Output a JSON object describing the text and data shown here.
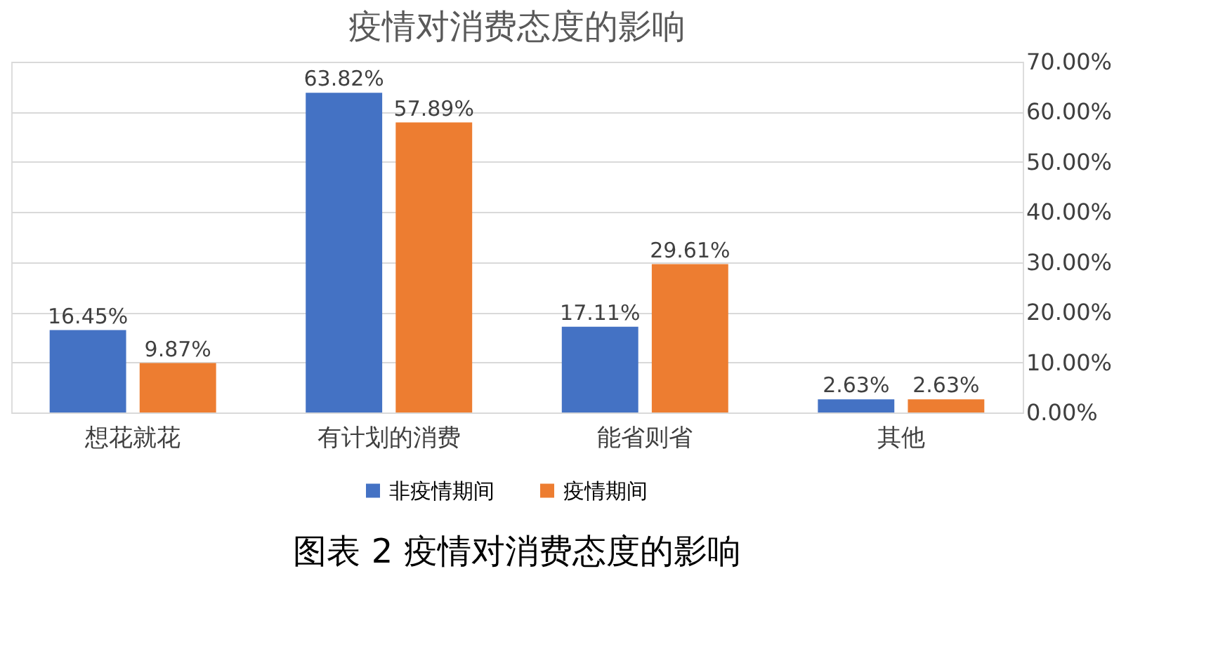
{
  "chart_data": {
    "type": "bar",
    "title": "疫情对消费态度的影响",
    "categories": [
      "想花就花",
      "有计划的消费",
      "能省则省",
      "其他"
    ],
    "series": [
      {
        "name": "非疫情期间",
        "color": "#4472c4",
        "values": [
          16.45,
          63.82,
          17.11,
          2.63
        ],
        "value_labels": [
          "16.45%",
          "63.82%",
          "17.11%",
          "2.63%"
        ]
      },
      {
        "name": "疫情期间",
        "color": "#ed7d31",
        "values": [
          9.87,
          57.89,
          29.61,
          2.63
        ],
        "value_labels": [
          "9.87%",
          "57.89%",
          "29.61%",
          "2.63%"
        ]
      }
    ],
    "ylim": [
      0,
      70
    ],
    "yticks": [
      {
        "value": 0,
        "label": "0.00%"
      },
      {
        "value": 10,
        "label": "10.00%"
      },
      {
        "value": 20,
        "label": "20.00%"
      },
      {
        "value": 30,
        "label": "30.00%"
      },
      {
        "value": 40,
        "label": "40.00%"
      },
      {
        "value": 50,
        "label": "50.00%"
      },
      {
        "value": 60,
        "label": "60.00%"
      },
      {
        "value": 70,
        "label": "70.00%"
      }
    ],
    "grid": "y",
    "legend": "bottom",
    "annotations": [
      "图表 2 疫情对消费态度的影响"
    ]
  }
}
